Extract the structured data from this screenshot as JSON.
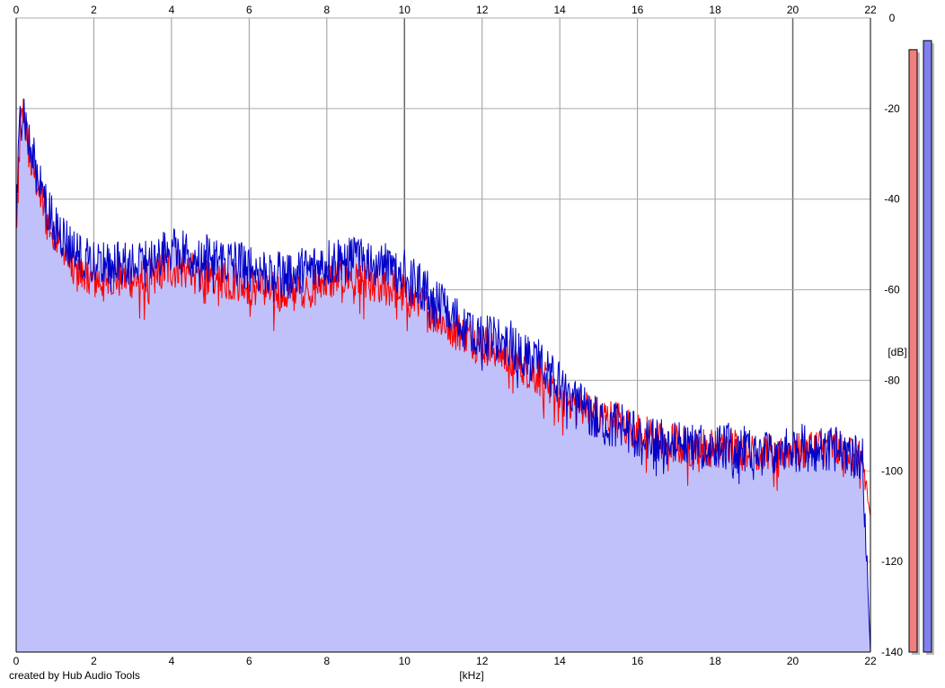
{
  "chart_data": {
    "type": "line",
    "title": "",
    "xlabel": "[kHz]",
    "ylabel": "[dB]",
    "xlim": [
      0,
      22
    ],
    "ylim": [
      -140,
      0
    ],
    "x_ticks": [
      0,
      2,
      4,
      6,
      8,
      10,
      12,
      14,
      16,
      18,
      20,
      22
    ],
    "y_ticks": [
      0,
      -20,
      -40,
      -60,
      -80,
      -100,
      -120,
      -140
    ],
    "grid": true,
    "fill_under": "#c0c0fa",
    "series": [
      {
        "color": "#ff0000",
        "x": [
          0.0,
          0.1,
          0.2,
          0.3,
          0.4,
          0.5,
          0.6,
          0.7,
          0.8,
          1.0,
          1.2,
          1.5,
          2.0,
          2.5,
          3.0,
          3.5,
          4.0,
          4.5,
          5.0,
          5.5,
          6.0,
          6.5,
          7.0,
          7.5,
          8.0,
          8.5,
          9.0,
          9.5,
          10.0,
          10.5,
          11.0,
          11.5,
          12.0,
          12.5,
          13.0,
          13.5,
          14.0,
          14.5,
          15.0,
          15.5,
          16.0,
          16.5,
          17.0,
          17.5,
          18.0,
          18.5,
          19.0,
          19.5,
          20.0,
          20.5,
          21.0,
          21.5,
          21.8,
          22.0
        ],
        "values": [
          -48,
          -25,
          -20,
          -28,
          -33,
          -35,
          -38,
          -42,
          -45,
          -48,
          -52,
          -56,
          -58,
          -57,
          -58,
          -57,
          -55,
          -56,
          -57,
          -58,
          -59,
          -60,
          -61,
          -60,
          -58,
          -57,
          -58,
          -59,
          -61,
          -64,
          -67,
          -70,
          -72,
          -74,
          -77,
          -79,
          -83,
          -86,
          -88,
          -89,
          -91,
          -93,
          -94,
          -95,
          -95,
          -95,
          -96,
          -96,
          -95,
          -95,
          -95,
          -96,
          -98,
          -110
        ]
      },
      {
        "color": "#0000c8",
        "x": [
          0.0,
          0.1,
          0.2,
          0.3,
          0.4,
          0.5,
          0.6,
          0.7,
          0.8,
          1.0,
          1.2,
          1.5,
          2.0,
          2.5,
          3.0,
          3.5,
          4.0,
          4.5,
          5.0,
          5.5,
          6.0,
          6.5,
          7.0,
          7.5,
          8.0,
          8.5,
          9.0,
          9.5,
          10.0,
          10.5,
          11.0,
          11.5,
          12.0,
          12.5,
          13.0,
          13.5,
          14.0,
          14.5,
          15.0,
          15.5,
          16.0,
          16.5,
          17.0,
          17.5,
          18.0,
          18.5,
          19.0,
          19.5,
          20.0,
          20.5,
          21.0,
          21.5,
          21.8,
          22.0
        ],
        "values": [
          -45,
          -22,
          -20,
          -27,
          -31,
          -33,
          -35,
          -38,
          -42,
          -45,
          -48,
          -52,
          -54,
          -53,
          -54,
          -53,
          -51,
          -52,
          -53,
          -54,
          -55,
          -56,
          -57,
          -56,
          -54,
          -53,
          -53,
          -54,
          -56,
          -60,
          -64,
          -68,
          -70,
          -71,
          -74,
          -76,
          -81,
          -85,
          -89,
          -90,
          -92,
          -93,
          -94,
          -95,
          -95,
          -95,
          -96,
          -96,
          -95,
          -95,
          -95,
          -96,
          -98,
          -140
        ]
      }
    ],
    "level_meters": [
      {
        "color": "#f08080",
        "top_db": -7
      },
      {
        "color": "#8080f0",
        "top_db": -5
      }
    ]
  },
  "credit": "created by Hub Audio Tools"
}
